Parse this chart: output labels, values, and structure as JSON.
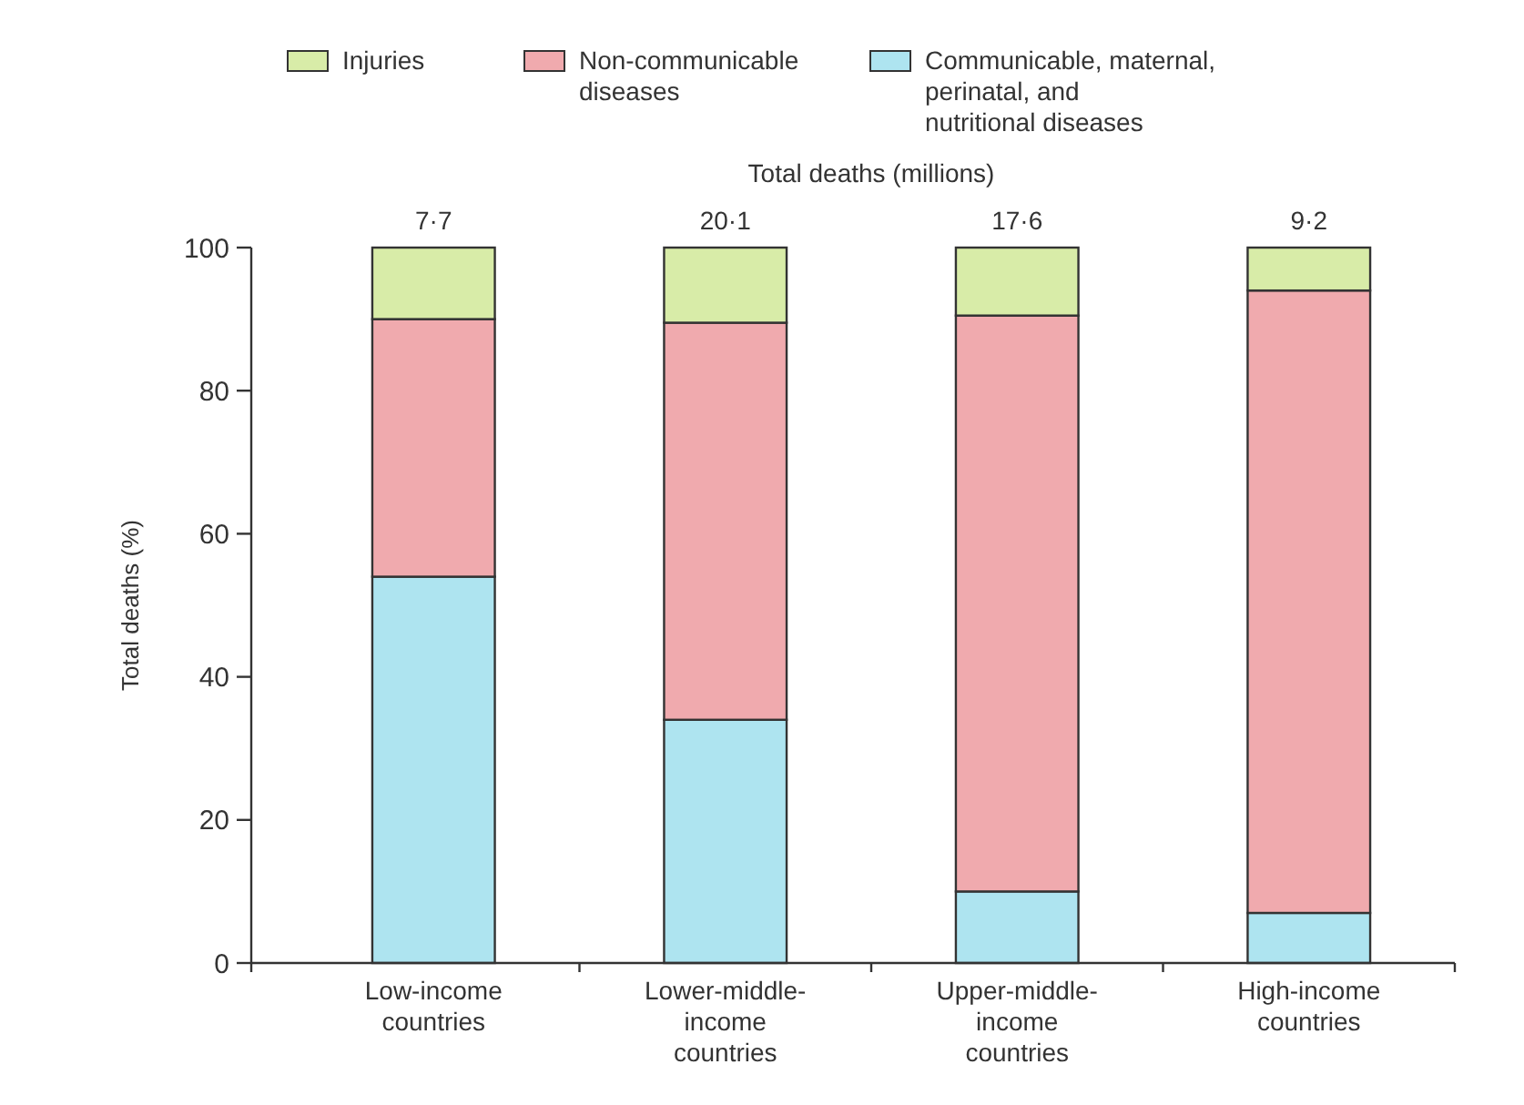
{
  "chart_data": {
    "type": "bar",
    "stacked": true,
    "subtitle": "Total deaths (millions)",
    "ylabel": "Total deaths (%)",
    "categories": [
      "Low-income countries",
      "Lower-middle-income countries",
      "Upper-middle-income countries",
      "High-income countries"
    ],
    "series": [
      {
        "name": "Communicable, maternal, perinatal, and nutritional diseases",
        "color": "#aee4f0",
        "values": [
          54,
          34,
          10,
          7
        ]
      },
      {
        "name": "Non-communicable diseases",
        "color": "#f0aaae",
        "values": [
          36,
          55.5,
          80.5,
          87
        ]
      },
      {
        "name": "Injuries",
        "color": "#d8eca8",
        "values": [
          10,
          10.5,
          9.5,
          6
        ]
      }
    ],
    "totals": [
      "7·7",
      "20·1",
      "17·6",
      "9·2"
    ],
    "ylim": [
      0,
      100
    ],
    "yticks": [
      0,
      20,
      40,
      60,
      80,
      100
    ],
    "legend": "top",
    "grid": false
  }
}
